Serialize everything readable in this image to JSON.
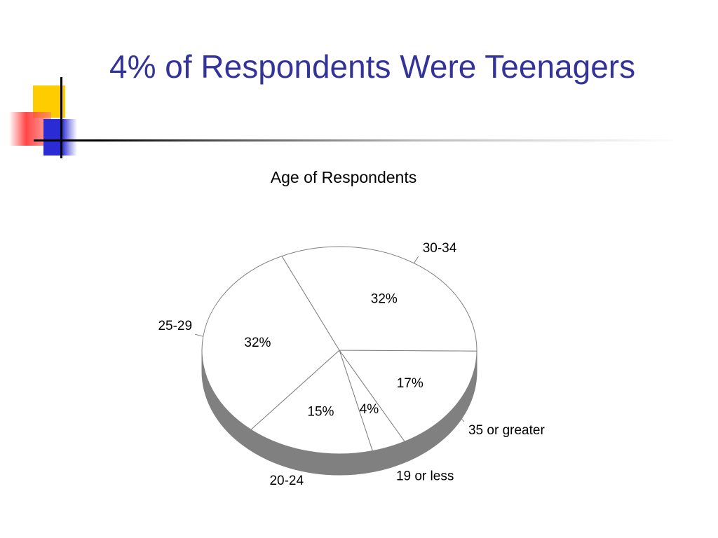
{
  "slide": {
    "title": "4% of Respondents Were Teenagers"
  },
  "colors": {
    "title": "#333399",
    "pie_top": "#ffffff",
    "pie_side": "#808080",
    "pie_stroke": "#808080",
    "logo_yellow": "#ffcc00",
    "logo_red": "#ff3c3c",
    "logo_blue": "#2b2bd6"
  },
  "chart_data": {
    "type": "pie",
    "style": "3d",
    "title": "Age of Respondents",
    "categories": [
      "35 or greater",
      "19 or less",
      "20-24",
      "25-29",
      "30-34"
    ],
    "values": [
      17,
      4,
      15,
      32,
      32
    ],
    "data_labels": [
      "17%",
      "4%",
      "15%",
      "32%",
      "32%"
    ],
    "legend": "none"
  }
}
